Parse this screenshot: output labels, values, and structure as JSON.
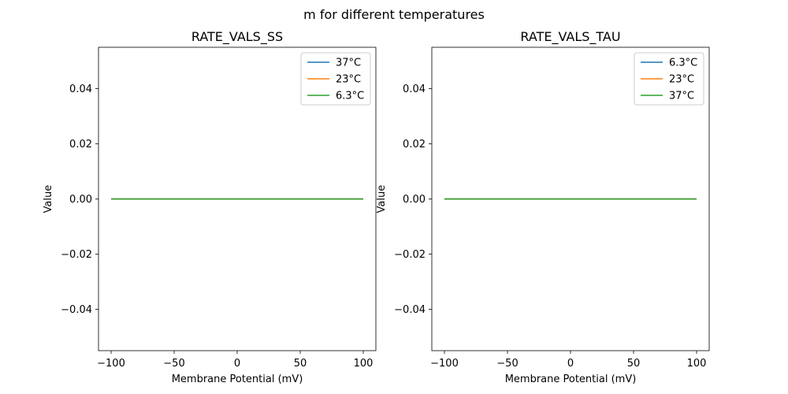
{
  "figure": {
    "suptitle": "m for different temperatures"
  },
  "chart_data": [
    {
      "type": "line",
      "title": "RATE_VALS_SS",
      "xlabel": "Membrane Potential (mV)",
      "ylabel": "Value",
      "xlim": [
        -110,
        110
      ],
      "ylim": [
        -0.055,
        0.055
      ],
      "xticks": [
        -100,
        -50,
        0,
        50,
        100
      ],
      "xtick_labels": [
        "−100",
        "−50",
        "0",
        "50",
        "100"
      ],
      "yticks": [
        0.04,
        0.02,
        0.0,
        -0.02,
        -0.04
      ],
      "ytick_labels": [
        "0.04",
        "0.02",
        "0.00",
        "−0.02",
        "−0.04"
      ],
      "grid": false,
      "legend_position": "top-right",
      "series": [
        {
          "name": "37°C",
          "color": "#1f77b4",
          "x": [
            -100,
            100
          ],
          "y": [
            0,
            0
          ]
        },
        {
          "name": "23°C",
          "color": "#ff7f0e",
          "x": [
            -100,
            100
          ],
          "y": [
            0,
            0
          ]
        },
        {
          "name": "6.3°C",
          "color": "#2ca02c",
          "x": [
            -100,
            100
          ],
          "y": [
            0,
            0
          ]
        }
      ]
    },
    {
      "type": "line",
      "title": "RATE_VALS_TAU",
      "xlabel": "Membrane Potential (mV)",
      "ylabel": "Value",
      "xlim": [
        -110,
        110
      ],
      "ylim": [
        -0.055,
        0.055
      ],
      "xticks": [
        -100,
        -50,
        0,
        50,
        100
      ],
      "xtick_labels": [
        "−100",
        "−50",
        "0",
        "50",
        "100"
      ],
      "yticks": [
        0.04,
        0.02,
        0.0,
        -0.02,
        -0.04
      ],
      "ytick_labels": [
        "0.04",
        "0.02",
        "0.00",
        "−0.02",
        "−0.04"
      ],
      "grid": false,
      "legend_position": "top-right",
      "series": [
        {
          "name": "6.3°C",
          "color": "#1f77b4",
          "x": [
            -100,
            100
          ],
          "y": [
            0,
            0
          ]
        },
        {
          "name": "23°C",
          "color": "#ff7f0e",
          "x": [
            -100,
            100
          ],
          "y": [
            0,
            0
          ]
        },
        {
          "name": "37°C",
          "color": "#2ca02c",
          "x": [
            -100,
            100
          ],
          "y": [
            0,
            0
          ]
        }
      ]
    }
  ]
}
